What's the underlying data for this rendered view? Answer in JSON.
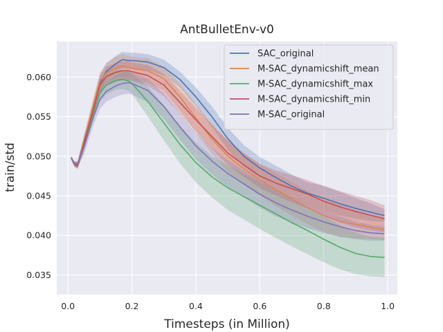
{
  "chart_data": {
    "type": "line",
    "title": "AntBulletEnv-v0",
    "xlabel": "Timesteps (in Million)",
    "ylabel": "train/std",
    "xlim": [
      -0.035,
      1.03
    ],
    "ylim": [
      0.0325,
      0.0645
    ],
    "xticks": [
      0.0,
      0.2,
      0.4,
      0.6,
      0.8,
      1.0
    ],
    "xtick_labels": [
      "0.0",
      "0.2",
      "0.4",
      "0.6",
      "0.8",
      "1.0"
    ],
    "yticks": [
      0.035,
      0.04,
      0.045,
      0.05,
      0.055,
      0.06
    ],
    "ytick_labels": [
      "0.035",
      "0.040",
      "0.045",
      "0.050",
      "0.055",
      "0.060"
    ],
    "grid": true,
    "legend_position": "top-right",
    "background": "#eaeaf2",
    "series": [
      {
        "name": "SAC_original",
        "color": "#4c72b0",
        "x": [
          0.01,
          0.02,
          0.03,
          0.05,
          0.08,
          0.1,
          0.12,
          0.15,
          0.17,
          0.19,
          0.2,
          0.25,
          0.3,
          0.35,
          0.4,
          0.45,
          0.5,
          0.55,
          0.6,
          0.65,
          0.7,
          0.75,
          0.8,
          0.85,
          0.9,
          0.95,
          0.99
        ],
        "mean": [
          0.0498,
          0.049,
          0.0489,
          0.0516,
          0.056,
          0.0592,
          0.0607,
          0.0617,
          0.0622,
          0.0621,
          0.0621,
          0.0619,
          0.0612,
          0.0597,
          0.0575,
          0.055,
          0.0522,
          0.05,
          0.0485,
          0.0473,
          0.0462,
          0.0453,
          0.0447,
          0.044,
          0.0434,
          0.0429,
          0.0425
        ],
        "lower": [
          0.0496,
          0.0487,
          0.0485,
          0.0508,
          0.0552,
          0.058,
          0.0596,
          0.0606,
          0.0611,
          0.0611,
          0.0611,
          0.0609,
          0.0602,
          0.0587,
          0.0563,
          0.0537,
          0.0508,
          0.0486,
          0.0471,
          0.0458,
          0.0447,
          0.0439,
          0.0431,
          0.0425,
          0.0421,
          0.0418,
          0.0417
        ],
        "upper": [
          0.05,
          0.0493,
          0.0493,
          0.0524,
          0.0568,
          0.0603,
          0.0618,
          0.0627,
          0.0632,
          0.0631,
          0.0631,
          0.0629,
          0.0622,
          0.0607,
          0.0587,
          0.0563,
          0.0536,
          0.0514,
          0.0499,
          0.0488,
          0.0477,
          0.0467,
          0.0463,
          0.0455,
          0.0447,
          0.044,
          0.0433
        ]
      },
      {
        "name": "M-SAC_dynamicshift_mean",
        "color": "#dd8452",
        "x": [
          0.01,
          0.02,
          0.03,
          0.05,
          0.08,
          0.1,
          0.12,
          0.15,
          0.17,
          0.19,
          0.2,
          0.25,
          0.3,
          0.35,
          0.4,
          0.45,
          0.5,
          0.55,
          0.6,
          0.65,
          0.7,
          0.75,
          0.8,
          0.85,
          0.9,
          0.95,
          0.99
        ],
        "mean": [
          0.0498,
          0.049,
          0.0489,
          0.0518,
          0.0566,
          0.0595,
          0.0605,
          0.0612,
          0.0614,
          0.0612,
          0.0611,
          0.0608,
          0.0598,
          0.0575,
          0.0548,
          0.0522,
          0.05,
          0.0484,
          0.047,
          0.0458,
          0.0446,
          0.0435,
          0.0425,
          0.0418,
          0.0414,
          0.041,
          0.0407
        ],
        "lower": [
          0.0496,
          0.0487,
          0.0485,
          0.0509,
          0.0556,
          0.0584,
          0.0593,
          0.0598,
          0.0599,
          0.0597,
          0.0596,
          0.0593,
          0.0583,
          0.0558,
          0.053,
          0.0503,
          0.048,
          0.0464,
          0.045,
          0.0437,
          0.0425,
          0.0414,
          0.0404,
          0.0398,
          0.0396,
          0.0395,
          0.0394
        ],
        "upper": [
          0.05,
          0.0493,
          0.0493,
          0.0527,
          0.0576,
          0.0606,
          0.0617,
          0.0626,
          0.0629,
          0.0627,
          0.0626,
          0.0624,
          0.0613,
          0.0592,
          0.0566,
          0.0541,
          0.052,
          0.0504,
          0.049,
          0.0479,
          0.0467,
          0.0456,
          0.0446,
          0.0438,
          0.0432,
          0.0425,
          0.042
        ]
      },
      {
        "name": "M-SAC_dynamicshift_max",
        "color": "#55a868",
        "x": [
          0.01,
          0.02,
          0.03,
          0.05,
          0.08,
          0.1,
          0.12,
          0.15,
          0.17,
          0.19,
          0.2,
          0.25,
          0.3,
          0.35,
          0.4,
          0.45,
          0.5,
          0.55,
          0.6,
          0.65,
          0.7,
          0.75,
          0.8,
          0.85,
          0.9,
          0.95,
          0.99
        ],
        "mean": [
          0.0498,
          0.049,
          0.0488,
          0.0515,
          0.0555,
          0.058,
          0.059,
          0.0596,
          0.0597,
          0.0595,
          0.0592,
          0.0569,
          0.0542,
          0.0515,
          0.0492,
          0.0474,
          0.046,
          0.0449,
          0.0438,
          0.0427,
          0.0416,
          0.0406,
          0.0395,
          0.0385,
          0.0377,
          0.0373,
          0.0372
        ],
        "lower": [
          0.0496,
          0.0487,
          0.0484,
          0.0506,
          0.0546,
          0.0569,
          0.0578,
          0.0584,
          0.0585,
          0.0583,
          0.0579,
          0.055,
          0.052,
          0.0491,
          0.0467,
          0.0448,
          0.0432,
          0.042,
          0.0408,
          0.0397,
          0.0386,
          0.0376,
          0.0366,
          0.0357,
          0.0351,
          0.0348,
          0.0347
        ],
        "upper": [
          0.05,
          0.0493,
          0.0492,
          0.0524,
          0.0564,
          0.0591,
          0.0602,
          0.0608,
          0.0609,
          0.0607,
          0.0605,
          0.0588,
          0.0564,
          0.0539,
          0.0517,
          0.05,
          0.0488,
          0.0478,
          0.0468,
          0.0457,
          0.0446,
          0.0436,
          0.0424,
          0.0413,
          0.0403,
          0.0398,
          0.0397
        ]
      },
      {
        "name": "M-SAC_dynamicshift_min",
        "color": "#c44e52",
        "x": [
          0.01,
          0.02,
          0.03,
          0.05,
          0.08,
          0.1,
          0.12,
          0.15,
          0.17,
          0.19,
          0.2,
          0.25,
          0.3,
          0.35,
          0.4,
          0.45,
          0.5,
          0.55,
          0.6,
          0.65,
          0.7,
          0.75,
          0.8,
          0.85,
          0.9,
          0.95,
          0.99
        ],
        "mean": [
          0.0498,
          0.049,
          0.0488,
          0.0516,
          0.056,
          0.059,
          0.0601,
          0.0606,
          0.0608,
          0.0608,
          0.0607,
          0.0602,
          0.059,
          0.0568,
          0.0546,
          0.0525,
          0.0504,
          0.0489,
          0.0475,
          0.0466,
          0.0459,
          0.0452,
          0.0443,
          0.0436,
          0.043,
          0.0425,
          0.0421
        ],
        "lower": [
          0.0496,
          0.0487,
          0.0484,
          0.0507,
          0.055,
          0.0578,
          0.0589,
          0.0594,
          0.0596,
          0.0596,
          0.0595,
          0.0589,
          0.0576,
          0.0553,
          0.0531,
          0.051,
          0.0489,
          0.0474,
          0.046,
          0.045,
          0.0442,
          0.0434,
          0.0424,
          0.0416,
          0.041,
          0.0406,
          0.0404
        ],
        "upper": [
          0.05,
          0.0493,
          0.0492,
          0.0525,
          0.057,
          0.0602,
          0.0613,
          0.0618,
          0.062,
          0.062,
          0.0619,
          0.0615,
          0.0604,
          0.0583,
          0.0561,
          0.054,
          0.0519,
          0.0504,
          0.049,
          0.0482,
          0.0476,
          0.047,
          0.0462,
          0.0456,
          0.045,
          0.0444,
          0.0438
        ]
      },
      {
        "name": "M-SAC_original",
        "color": "#8172b3",
        "x": [
          0.01,
          0.02,
          0.03,
          0.05,
          0.08,
          0.1,
          0.12,
          0.15,
          0.17,
          0.19,
          0.2,
          0.25,
          0.3,
          0.35,
          0.4,
          0.45,
          0.5,
          0.55,
          0.6,
          0.65,
          0.7,
          0.75,
          0.8,
          0.85,
          0.9,
          0.95,
          0.99
        ],
        "mean": [
          0.0498,
          0.0491,
          0.049,
          0.0512,
          0.055,
          0.0572,
          0.0582,
          0.0589,
          0.0592,
          0.0593,
          0.0592,
          0.0583,
          0.0563,
          0.0537,
          0.0513,
          0.0494,
          0.0478,
          0.0465,
          0.0452,
          0.0441,
          0.0432,
          0.0424,
          0.0417,
          0.0411,
          0.0406,
          0.0403,
          0.0402
        ],
        "lower": [
          0.0496,
          0.0488,
          0.0486,
          0.0502,
          0.0539,
          0.056,
          0.0569,
          0.0575,
          0.0578,
          0.0579,
          0.0578,
          0.0568,
          0.0547,
          0.0521,
          0.0496,
          0.0477,
          0.0461,
          0.0448,
          0.0435,
          0.0424,
          0.0416,
          0.0409,
          0.0403,
          0.0398,
          0.0395,
          0.0393,
          0.0393
        ],
        "upper": [
          0.05,
          0.0494,
          0.0494,
          0.0522,
          0.0561,
          0.0584,
          0.0595,
          0.0603,
          0.0606,
          0.0607,
          0.0606,
          0.0598,
          0.0579,
          0.0553,
          0.053,
          0.0511,
          0.0495,
          0.0482,
          0.0469,
          0.0458,
          0.0448,
          0.0439,
          0.0431,
          0.0424,
          0.0417,
          0.0413,
          0.0411
        ]
      }
    ]
  }
}
